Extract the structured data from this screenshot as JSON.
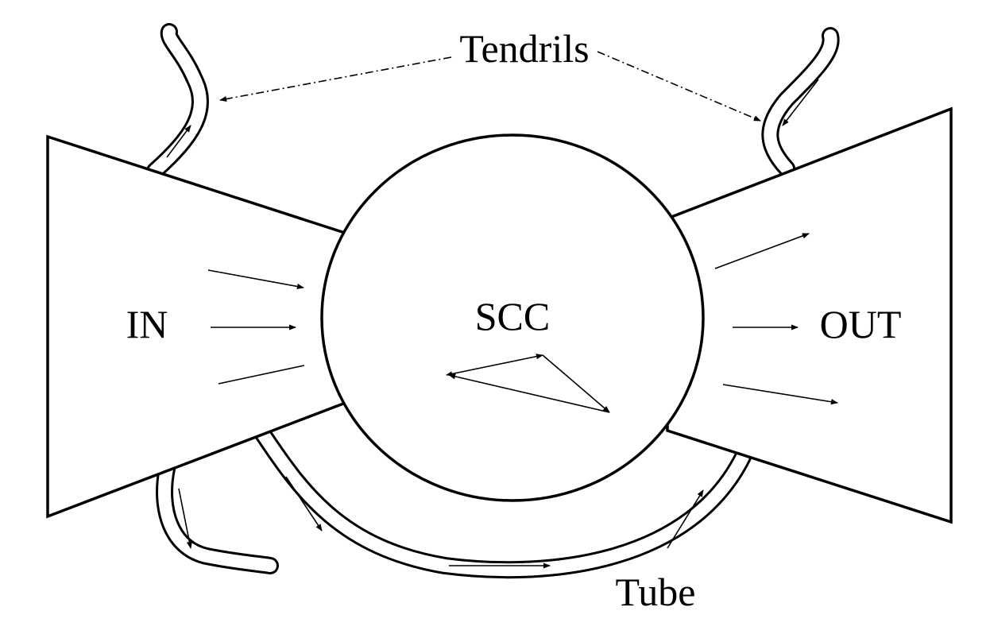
{
  "labels": {
    "in": "IN",
    "scc": "SCC",
    "out": "OUT",
    "tendrils": "Tendrils",
    "tube": "Tube"
  }
}
